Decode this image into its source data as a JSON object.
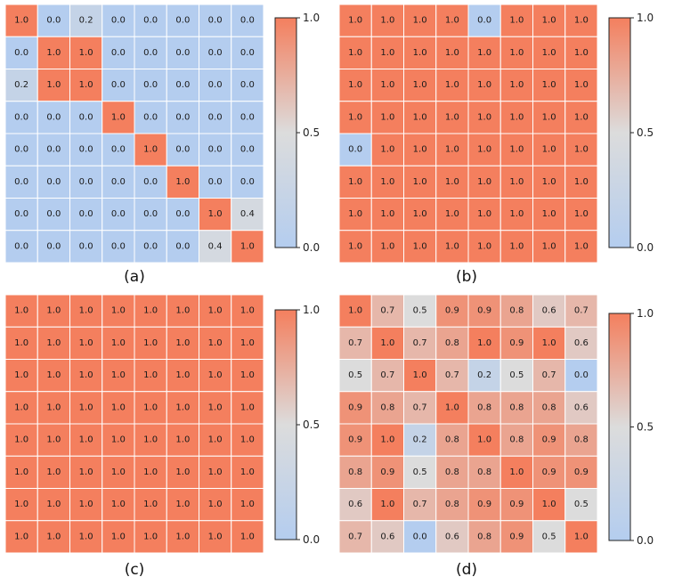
{
  "colormap": {
    "low": "#b4cdef",
    "mid": "#dcdcdc",
    "high": "#f47f5e"
  },
  "chart_data": [
    {
      "type": "heatmap",
      "label": "(a)",
      "vmin": 0.0,
      "vmax": 1.0,
      "colorbar_ticks": [
        "0.0",
        "0.5",
        "1.0"
      ],
      "values": [
        [
          1.0,
          0.0,
          0.2,
          0.0,
          0.0,
          0.0,
          0.0,
          0.0
        ],
        [
          0.0,
          1.0,
          1.0,
          0.0,
          0.0,
          0.0,
          0.0,
          0.0
        ],
        [
          0.2,
          1.0,
          1.0,
          0.0,
          0.0,
          0.0,
          0.0,
          0.0
        ],
        [
          0.0,
          0.0,
          0.0,
          1.0,
          0.0,
          0.0,
          0.0,
          0.0
        ],
        [
          0.0,
          0.0,
          0.0,
          0.0,
          1.0,
          0.0,
          0.0,
          0.0
        ],
        [
          0.0,
          0.0,
          0.0,
          0.0,
          0.0,
          1.0,
          0.0,
          0.0
        ],
        [
          0.0,
          0.0,
          0.0,
          0.0,
          0.0,
          0.0,
          1.0,
          0.4
        ],
        [
          0.0,
          0.0,
          0.0,
          0.0,
          0.0,
          0.0,
          0.4,
          1.0
        ]
      ]
    },
    {
      "type": "heatmap",
      "label": "(b)",
      "vmin": 0.0,
      "vmax": 1.0,
      "colorbar_ticks": [
        "0.0",
        "0.5",
        "1.0"
      ],
      "values": [
        [
          1.0,
          1.0,
          1.0,
          1.0,
          0.0,
          1.0,
          1.0,
          1.0
        ],
        [
          1.0,
          1.0,
          1.0,
          1.0,
          1.0,
          1.0,
          1.0,
          1.0
        ],
        [
          1.0,
          1.0,
          1.0,
          1.0,
          1.0,
          1.0,
          1.0,
          1.0
        ],
        [
          1.0,
          1.0,
          1.0,
          1.0,
          1.0,
          1.0,
          1.0,
          1.0
        ],
        [
          0.0,
          1.0,
          1.0,
          1.0,
          1.0,
          1.0,
          1.0,
          1.0
        ],
        [
          1.0,
          1.0,
          1.0,
          1.0,
          1.0,
          1.0,
          1.0,
          1.0
        ],
        [
          1.0,
          1.0,
          1.0,
          1.0,
          1.0,
          1.0,
          1.0,
          1.0
        ],
        [
          1.0,
          1.0,
          1.0,
          1.0,
          1.0,
          1.0,
          1.0,
          1.0
        ]
      ]
    },
    {
      "type": "heatmap",
      "label": "(c)",
      "vmin": 0.0,
      "vmax": 1.0,
      "colorbar_ticks": [
        "0.0",
        "0.5",
        "1.0"
      ],
      "values": [
        [
          1.0,
          1.0,
          1.0,
          1.0,
          1.0,
          1.0,
          1.0,
          1.0
        ],
        [
          1.0,
          1.0,
          1.0,
          1.0,
          1.0,
          1.0,
          1.0,
          1.0
        ],
        [
          1.0,
          1.0,
          1.0,
          1.0,
          1.0,
          1.0,
          1.0,
          1.0
        ],
        [
          1.0,
          1.0,
          1.0,
          1.0,
          1.0,
          1.0,
          1.0,
          1.0
        ],
        [
          1.0,
          1.0,
          1.0,
          1.0,
          1.0,
          1.0,
          1.0,
          1.0
        ],
        [
          1.0,
          1.0,
          1.0,
          1.0,
          1.0,
          1.0,
          1.0,
          1.0
        ],
        [
          1.0,
          1.0,
          1.0,
          1.0,
          1.0,
          1.0,
          1.0,
          1.0
        ],
        [
          1.0,
          1.0,
          1.0,
          1.0,
          1.0,
          1.0,
          1.0,
          1.0
        ]
      ]
    },
    {
      "type": "heatmap",
      "label": "(d)",
      "vmin": 0.0,
      "vmax": 1.0,
      "colorbar_ticks": [
        "0.0",
        "0.5",
        "1.0"
      ],
      "values": [
        [
          1.0,
          0.7,
          0.5,
          0.9,
          0.9,
          0.8,
          0.6,
          0.7
        ],
        [
          0.7,
          1.0,
          0.7,
          0.8,
          1.0,
          0.9,
          1.0,
          0.6
        ],
        [
          0.5,
          0.7,
          1.0,
          0.7,
          0.2,
          0.5,
          0.7,
          0.0
        ],
        [
          0.9,
          0.8,
          0.7,
          1.0,
          0.8,
          0.8,
          0.8,
          0.6
        ],
        [
          0.9,
          1.0,
          0.2,
          0.8,
          1.0,
          0.8,
          0.9,
          0.8
        ],
        [
          0.8,
          0.9,
          0.5,
          0.8,
          0.8,
          1.0,
          0.9,
          0.9
        ],
        [
          0.6,
          1.0,
          0.7,
          0.8,
          0.9,
          0.9,
          1.0,
          0.5
        ],
        [
          0.7,
          0.6,
          0.0,
          0.6,
          0.8,
          0.9,
          0.5,
          1.0
        ]
      ]
    }
  ]
}
